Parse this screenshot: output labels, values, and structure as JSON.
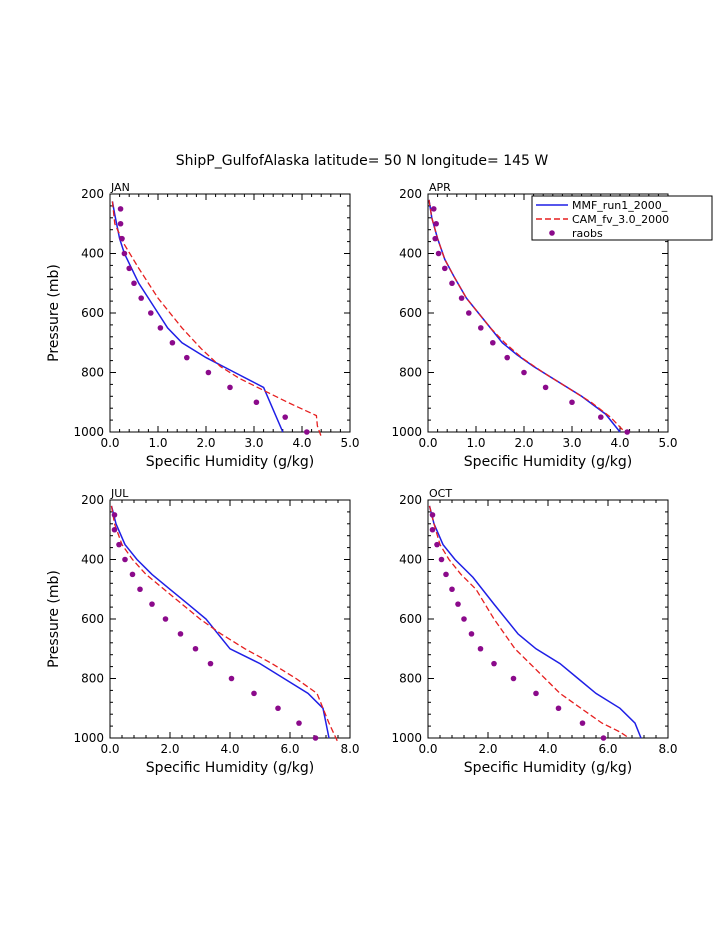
{
  "title": "ShipP_GulfofAlaska  latitude= 50 N longitude= 145 W",
  "legend": {
    "entries": [
      "MMF_run1_2000_",
      "CAM_fv_3.0_2000",
      "raobs"
    ],
    "colors": [
      "#1f1fe6",
      "#e61f1f",
      "#8b0a8b"
    ]
  },
  "chart_data": [
    {
      "type": "line",
      "panel": "JAN",
      "xlabel": "Specific Humidity (g/kg)",
      "ylabel": "Pressure (mb)",
      "xlim": [
        0,
        5
      ],
      "xticks": [
        "0.0",
        "1.0",
        "2.0",
        "3.0",
        "4.0",
        "5.0"
      ],
      "ylim": [
        1000,
        200
      ],
      "yticks": [
        "200",
        "400",
        "600",
        "800",
        "1000"
      ],
      "series": [
        {
          "name": "MMF_run1_2000_",
          "x": [
            0.05,
            0.1,
            0.2,
            0.3,
            0.45,
            0.6,
            0.8,
            1.0,
            1.2,
            1.5,
            2.0,
            2.6,
            3.2,
            3.6
          ],
          "y": [
            225,
            270,
            350,
            400,
            450,
            500,
            550,
            600,
            650,
            700,
            750,
            800,
            850,
            1000
          ]
        },
        {
          "name": "CAM_fv_3.0_2000",
          "x": [
            0.05,
            0.1,
            0.3,
            0.6,
            1.0,
            1.5,
            1.9,
            2.3,
            2.7,
            3.2,
            3.7,
            4.3,
            4.32,
            4.4
          ],
          "y": [
            225,
            300,
            370,
            450,
            550,
            650,
            720,
            780,
            820,
            860,
            900,
            945,
            980,
            1015
          ]
        },
        {
          "name": "raobs",
          "x": [
            0.22,
            0.22,
            0.25,
            0.3,
            0.4,
            0.5,
            0.65,
            0.85,
            1.05,
            1.3,
            1.6,
            2.05,
            2.5,
            3.05,
            3.65,
            4.1
          ],
          "y": [
            250,
            300,
            350,
            400,
            450,
            500,
            550,
            600,
            650,
            700,
            750,
            800,
            850,
            900,
            950,
            1000
          ]
        }
      ]
    },
    {
      "type": "line",
      "panel": "APR",
      "xlabel": "Specific Humidity (g/kg)",
      "ylabel": "",
      "xlim": [
        0,
        5
      ],
      "xticks": [
        "0.0",
        "1.0",
        "2.0",
        "3.0",
        "4.0",
        "5.0"
      ],
      "ylim": [
        1000,
        200
      ],
      "yticks": [
        "200",
        "400",
        "600",
        "800",
        "1000"
      ],
      "series": [
        {
          "name": "MMF_run1_2000_",
          "x": [
            0.02,
            0.08,
            0.2,
            0.35,
            0.55,
            0.8,
            1.05,
            1.3,
            1.55,
            1.85,
            2.2,
            2.7,
            3.2,
            3.7,
            4.0
          ],
          "y": [
            220,
            280,
            350,
            420,
            480,
            550,
            600,
            650,
            700,
            740,
            780,
            830,
            880,
            940,
            1000
          ]
        },
        {
          "name": "CAM_fv_3.0_2000",
          "x": [
            0.02,
            0.08,
            0.2,
            0.35,
            0.55,
            0.8,
            1.05,
            1.3,
            1.6,
            1.95,
            2.4,
            2.9,
            3.4,
            3.8,
            4.1
          ],
          "y": [
            220,
            280,
            350,
            420,
            480,
            550,
            600,
            650,
            700,
            750,
            800,
            850,
            900,
            950,
            1000
          ]
        },
        {
          "name": "raobs",
          "x": [
            0.12,
            0.17,
            0.15,
            0.22,
            0.35,
            0.5,
            0.7,
            0.85,
            1.1,
            1.35,
            1.65,
            2.0,
            2.45,
            3.0,
            3.6,
            4.15
          ],
          "y": [
            250,
            300,
            350,
            400,
            450,
            500,
            550,
            600,
            650,
            700,
            750,
            800,
            850,
            900,
            950,
            1000
          ]
        }
      ]
    },
    {
      "type": "line",
      "panel": "JUL",
      "xlabel": "Specific Humidity (g/kg)",
      "ylabel": "Pressure (mb)",
      "xlim": [
        0,
        8
      ],
      "xticks": [
        "0.0",
        "2.0",
        "4.0",
        "6.0",
        "8.0"
      ],
      "ylim": [
        1000,
        200
      ],
      "yticks": [
        "200",
        "400",
        "600",
        "800",
        "1000"
      ],
      "series": [
        {
          "name": "MMF_run1_2000_",
          "x": [
            0.05,
            0.2,
            0.5,
            0.9,
            1.4,
            2.0,
            2.6,
            3.2,
            4.0,
            5.0,
            5.8,
            6.6,
            7.1,
            7.2,
            7.3
          ],
          "y": [
            220,
            280,
            350,
            400,
            450,
            500,
            550,
            600,
            700,
            750,
            800,
            850,
            900,
            950,
            1000
          ]
        },
        {
          "name": "CAM_fv_3.0_2000",
          "x": [
            0.05,
            0.15,
            0.4,
            0.75,
            1.2,
            1.8,
            2.4,
            3.0,
            3.7,
            4.5,
            5.4,
            6.2,
            6.9,
            7.3,
            7.6
          ],
          "y": [
            220,
            280,
            350,
            400,
            450,
            500,
            550,
            600,
            650,
            700,
            750,
            800,
            850,
            950,
            1015
          ]
        },
        {
          "name": "raobs",
          "x": [
            0.15,
            0.15,
            0.3,
            0.5,
            0.75,
            1.0,
            1.4,
            1.85,
            2.35,
            2.85,
            3.35,
            4.05,
            4.8,
            5.6,
            6.3,
            6.85
          ],
          "y": [
            250,
            300,
            350,
            400,
            450,
            500,
            550,
            600,
            650,
            700,
            750,
            800,
            850,
            900,
            950,
            1000
          ]
        }
      ]
    },
    {
      "type": "line",
      "panel": "OCT",
      "xlabel": "Specific Humidity (g/kg)",
      "ylabel": "",
      "xlim": [
        0,
        8
      ],
      "xticks": [
        "0.0",
        "2.0",
        "4.0",
        "6.0",
        "8.0"
      ],
      "ylim": [
        1000,
        200
      ],
      "yticks": [
        "200",
        "400",
        "600",
        "800",
        "1000"
      ],
      "series": [
        {
          "name": "MMF_run1_2000_",
          "x": [
            0.05,
            0.2,
            0.5,
            0.9,
            1.5,
            2.2,
            3.0,
            3.6,
            4.4,
            5.0,
            5.6,
            6.4,
            6.9,
            7.1
          ],
          "y": [
            220,
            280,
            350,
            400,
            460,
            550,
            650,
            700,
            750,
            800,
            850,
            900,
            950,
            1000
          ]
        },
        {
          "name": "CAM_fv_3.0_2000",
          "x": [
            0.05,
            0.2,
            0.4,
            0.7,
            1.1,
            1.6,
            2.2,
            2.9,
            3.7,
            4.4,
            5.1,
            5.8,
            6.4,
            6.7
          ],
          "y": [
            220,
            280,
            350,
            400,
            450,
            500,
            600,
            700,
            780,
            850,
            900,
            950,
            980,
            1000
          ]
        },
        {
          "name": "raobs",
          "x": [
            0.15,
            0.15,
            0.3,
            0.45,
            0.6,
            0.8,
            1.0,
            1.2,
            1.45,
            1.75,
            2.2,
            2.85,
            3.6,
            4.35,
            5.15,
            5.85
          ],
          "y": [
            250,
            300,
            350,
            400,
            450,
            500,
            550,
            600,
            650,
            700,
            750,
            800,
            850,
            900,
            950,
            1000
          ]
        }
      ]
    }
  ]
}
